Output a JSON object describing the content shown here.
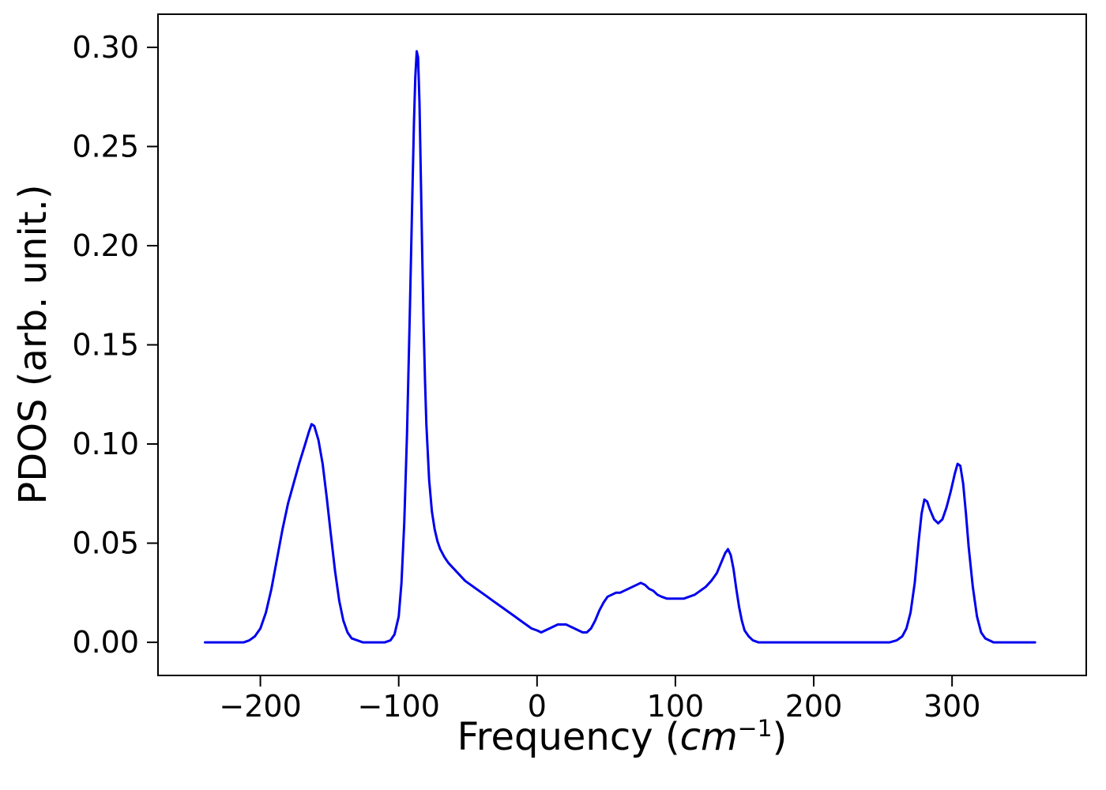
{
  "figure": {
    "background": "#ffffff",
    "spine_color": "#000000"
  },
  "chart_data": {
    "type": "line",
    "title": "",
    "xlabel": {
      "prefix": "Frequency (",
      "variable": "cm",
      "superscript": "−1",
      "suffix": ")"
    },
    "ylabel": "PDOS (arb. unit.)",
    "xlim": [
      -274,
      397
    ],
    "ylim": [
      -0.0167,
      0.3167
    ],
    "xticks": [
      -200,
      -100,
      0,
      100,
      200,
      300
    ],
    "xtick_labels": [
      "−200",
      "−100",
      "0",
      "100",
      "200",
      "300"
    ],
    "yticks": [
      0.0,
      0.05,
      0.1,
      0.15,
      0.2,
      0.25,
      0.3
    ],
    "ytick_labels": [
      "0.00",
      "0.05",
      "0.10",
      "0.15",
      "0.20",
      "0.25",
      "0.30"
    ],
    "grid": false,
    "legend": null,
    "line_color": "#0000ee",
    "line_width": 3,
    "series": [
      {
        "name": "PDOS",
        "x": [
          -240,
          -230,
          -220,
          -212,
          -208,
          -204,
          -200,
          -196,
          -192,
          -188,
          -184,
          -180,
          -176,
          -172,
          -168,
          -165,
          -163,
          -161,
          -158,
          -155,
          -152,
          -149,
          -146,
          -143,
          -140,
          -137,
          -134,
          -130,
          -126,
          -120,
          -114,
          -110,
          -106,
          -103,
          -100,
          -98,
          -96,
          -94,
          -92,
          -90,
          -89,
          -88,
          -87,
          -86,
          -85,
          -84,
          -83,
          -82,
          -81,
          -80,
          -78,
          -76,
          -74,
          -72,
          -70,
          -67,
          -64,
          -60,
          -56,
          -52,
          -48,
          -44,
          -40,
          -36,
          -32,
          -28,
          -24,
          -20,
          -16,
          -12,
          -8,
          -4,
          0,
          3,
          6,
          9,
          12,
          15,
          18,
          21,
          24,
          27,
          30,
          33,
          36,
          39,
          42,
          45,
          48,
          51,
          54,
          57,
          60,
          63,
          66,
          69,
          72,
          75,
          78,
          81,
          84,
          87,
          90,
          94,
          98,
          102,
          106,
          110,
          114,
          118,
          122,
          126,
          130,
          133,
          136,
          138,
          140,
          142,
          144,
          146,
          148,
          150,
          153,
          156,
          160,
          165,
          180,
          200,
          220,
          240,
          255,
          260,
          264,
          267,
          270,
          273,
          276,
          278,
          280,
          282,
          284,
          287,
          290,
          293,
          296,
          299,
          302,
          304,
          306,
          308,
          310,
          312,
          315,
          318,
          321,
          324,
          327,
          330,
          340,
          350,
          360
        ],
        "y": [
          0,
          0,
          0,
          0,
          0.001,
          0.003,
          0.007,
          0.015,
          0.027,
          0.042,
          0.057,
          0.07,
          0.08,
          0.09,
          0.099,
          0.106,
          0.11,
          0.109,
          0.102,
          0.09,
          0.073,
          0.054,
          0.036,
          0.021,
          0.011,
          0.005,
          0.002,
          0.001,
          0,
          0,
          0,
          0,
          0.001,
          0.004,
          0.013,
          0.03,
          0.06,
          0.105,
          0.165,
          0.23,
          0.262,
          0.285,
          0.298,
          0.295,
          0.272,
          0.235,
          0.195,
          0.16,
          0.132,
          0.11,
          0.082,
          0.066,
          0.057,
          0.051,
          0.047,
          0.043,
          0.04,
          0.037,
          0.034,
          0.031,
          0.029,
          0.027,
          0.025,
          0.023,
          0.021,
          0.019,
          0.017,
          0.015,
          0.013,
          0.011,
          0.009,
          0.007,
          0.006,
          0.005,
          0.006,
          0.007,
          0.008,
          0.009,
          0.009,
          0.009,
          0.008,
          0.007,
          0.006,
          0.005,
          0.005,
          0.007,
          0.011,
          0.016,
          0.02,
          0.023,
          0.024,
          0.025,
          0.025,
          0.026,
          0.027,
          0.028,
          0.029,
          0.03,
          0.029,
          0.027,
          0.026,
          0.024,
          0.023,
          0.022,
          0.022,
          0.022,
          0.022,
          0.023,
          0.024,
          0.026,
          0.028,
          0.031,
          0.035,
          0.04,
          0.045,
          0.047,
          0.044,
          0.037,
          0.027,
          0.018,
          0.011,
          0.006,
          0.003,
          0.001,
          0,
          0,
          0,
          0,
          0,
          0,
          0,
          0.001,
          0.003,
          0.007,
          0.015,
          0.03,
          0.052,
          0.065,
          0.072,
          0.071,
          0.067,
          0.062,
          0.06,
          0.062,
          0.068,
          0.076,
          0.085,
          0.09,
          0.089,
          0.08,
          0.065,
          0.048,
          0.028,
          0.013,
          0.005,
          0.002,
          0.001,
          0,
          0,
          0,
          0
        ]
      }
    ]
  }
}
